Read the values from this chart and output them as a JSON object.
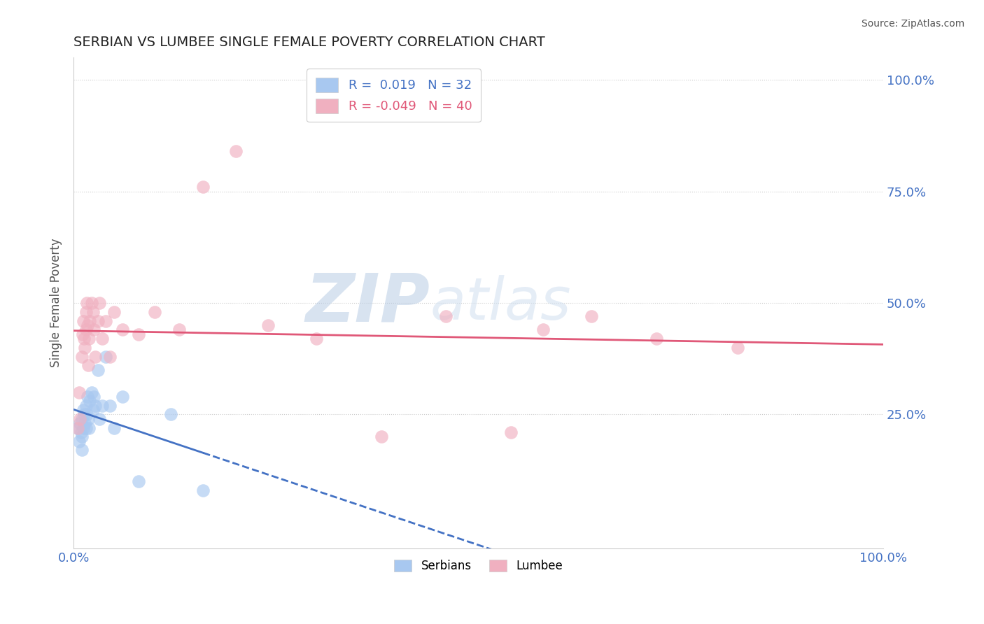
{
  "title": "SERBIAN VS LUMBEE SINGLE FEMALE POVERTY CORRELATION CHART",
  "source": "Source: ZipAtlas.com",
  "ylabel": "Single Female Poverty",
  "xlim": [
    0,
    1
  ],
  "ylim": [
    -0.05,
    1.05
  ],
  "xtick_labels": [
    "0.0%",
    "100.0%"
  ],
  "ytick_labels": [
    "25.0%",
    "50.0%",
    "75.0%",
    "100.0%"
  ],
  "ytick_positions": [
    0.25,
    0.5,
    0.75,
    1.0
  ],
  "serbian_color": "#a8c8f0",
  "lumbee_color": "#f0b0c0",
  "serbian_line_color": "#4472c4",
  "lumbee_line_color": "#e05878",
  "serbian_R": 0.019,
  "serbian_N": 32,
  "lumbee_R": -0.049,
  "lumbee_N": 40,
  "legend_label_serbian": "Serbians",
  "legend_label_lumbee": "Lumbee",
  "watermark_zip": "ZIP",
  "watermark_atlas": "atlas",
  "grid_color": "#cccccc",
  "title_color": "#222222",
  "tick_label_color": "#4472c4",
  "ylabel_color": "#555555",
  "source_color": "#555555",
  "serbian_x": [
    0.005,
    0.007,
    0.008,
    0.009,
    0.01,
    0.01,
    0.01,
    0.012,
    0.012,
    0.013,
    0.014,
    0.015,
    0.015,
    0.016,
    0.017,
    0.018,
    0.019,
    0.02,
    0.022,
    0.024,
    0.025,
    0.027,
    0.03,
    0.032,
    0.035,
    0.04,
    0.045,
    0.05,
    0.06,
    0.08,
    0.12,
    0.16
  ],
  "serbian_y": [
    0.22,
    0.19,
    0.23,
    0.21,
    0.24,
    0.2,
    0.17,
    0.26,
    0.22,
    0.25,
    0.23,
    0.27,
    0.22,
    0.25,
    0.29,
    0.24,
    0.22,
    0.28,
    0.3,
    0.26,
    0.29,
    0.27,
    0.35,
    0.24,
    0.27,
    0.38,
    0.27,
    0.22,
    0.29,
    0.1,
    0.25,
    0.08
  ],
  "lumbee_x": [
    0.005,
    0.007,
    0.008,
    0.01,
    0.011,
    0.012,
    0.013,
    0.014,
    0.015,
    0.015,
    0.016,
    0.017,
    0.018,
    0.019,
    0.02,
    0.022,
    0.024,
    0.025,
    0.027,
    0.03,
    0.032,
    0.035,
    0.04,
    0.045,
    0.05,
    0.06,
    0.08,
    0.1,
    0.13,
    0.16,
    0.2,
    0.24,
    0.3,
    0.38,
    0.46,
    0.54,
    0.58,
    0.64,
    0.72,
    0.82
  ],
  "lumbee_y": [
    0.22,
    0.3,
    0.24,
    0.38,
    0.43,
    0.46,
    0.42,
    0.4,
    0.48,
    0.44,
    0.5,
    0.45,
    0.36,
    0.42,
    0.46,
    0.5,
    0.48,
    0.44,
    0.38,
    0.46,
    0.5,
    0.42,
    0.46,
    0.38,
    0.48,
    0.44,
    0.43,
    0.48,
    0.44,
    0.76,
    0.84,
    0.45,
    0.42,
    0.2,
    0.47,
    0.21,
    0.44,
    0.47,
    0.42,
    0.4
  ],
  "legend_text_blue": "#4472c4",
  "legend_text_pink": "#e05878"
}
